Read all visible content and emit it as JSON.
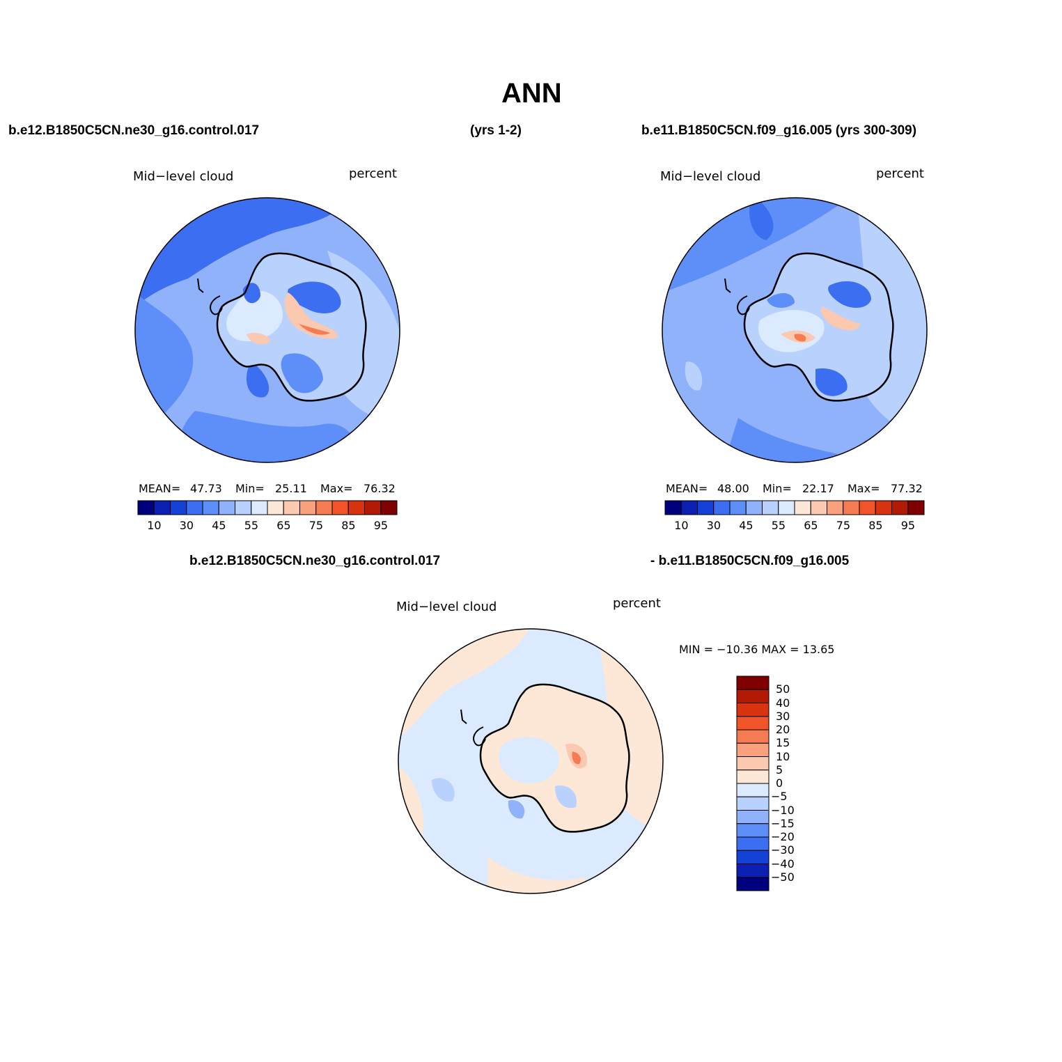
{
  "title": "ANN",
  "top_left_case": "b.e12.B1850C5CN.ne30_g16.control.017",
  "top_left_years": "(yrs 1-2)",
  "top_right_case": "b.e11.B1850C5CN.f09_g16.005 (yrs 300-309)",
  "diff_case_a": "b.e12.B1850C5CN.ne30_g16.control.017",
  "diff_case_b": "- b.e11.B1850C5CN.f09_g16.005",
  "panels": [
    {
      "variable": "Mid−level cloud",
      "units": "percent",
      "mean_label": "MEAN=",
      "mean": "47.73",
      "min_label": "Min=",
      "min": "25.11",
      "max_label": "Max=",
      "max": "76.32"
    },
    {
      "variable": "Mid−level cloud",
      "units": "percent",
      "mean_label": "MEAN=",
      "mean": "48.00",
      "min_label": "Min=",
      "min": "22.17",
      "max_label": "Max=",
      "max": "77.32"
    }
  ],
  "diff_panel": {
    "variable": "Mid−level cloud",
    "units": "percent",
    "minmax": "MIN = −10.36 MAX =   13.65"
  },
  "colorbar_labels": [
    "10",
    "30",
    "45",
    "55",
    "65",
    "75",
    "85",
    "95"
  ],
  "colorbar_colors": [
    "#00007f",
    "#0b1fb3",
    "#1441d6",
    "#3b6ef0",
    "#5e8ef8",
    "#8fb2fb",
    "#b9d1fd",
    "#dbeafe",
    "#fde8d8",
    "#fbc8b0",
    "#f9a07c",
    "#f57c52",
    "#f05428",
    "#d8340f",
    "#b21a06",
    "#7f0000"
  ],
  "diff_colorbar_labels": [
    "50",
    "40",
    "30",
    "20",
    "15",
    "10",
    "5",
    "0",
    "−5",
    "−10",
    "−15",
    "−20",
    "−30",
    "−40",
    "−50"
  ],
  "diff_colorbar_colors": [
    "#7f0000",
    "#b21a06",
    "#d8340f",
    "#f05428",
    "#f57c52",
    "#f9a07c",
    "#fbc8b0",
    "#fde8d8",
    "#dbeafe",
    "#b9d1fd",
    "#8fb2fb",
    "#5e8ef8",
    "#3b6ef0",
    "#1441d6",
    "#0b1fb3",
    "#00007f"
  ],
  "map_colors": {
    "ocean_mid": "#8fb2fb",
    "ocean_dark": "#5e8ef8",
    "ocean_deep": "#3b6ef0",
    "ocean_pale": "#b9d1fd",
    "ice_pale": "#dbeafe",
    "warm_low": "#fde8d8",
    "warm_mid": "#fbc8b0",
    "warm_high": "#f57c52",
    "coast": "#000000"
  }
}
